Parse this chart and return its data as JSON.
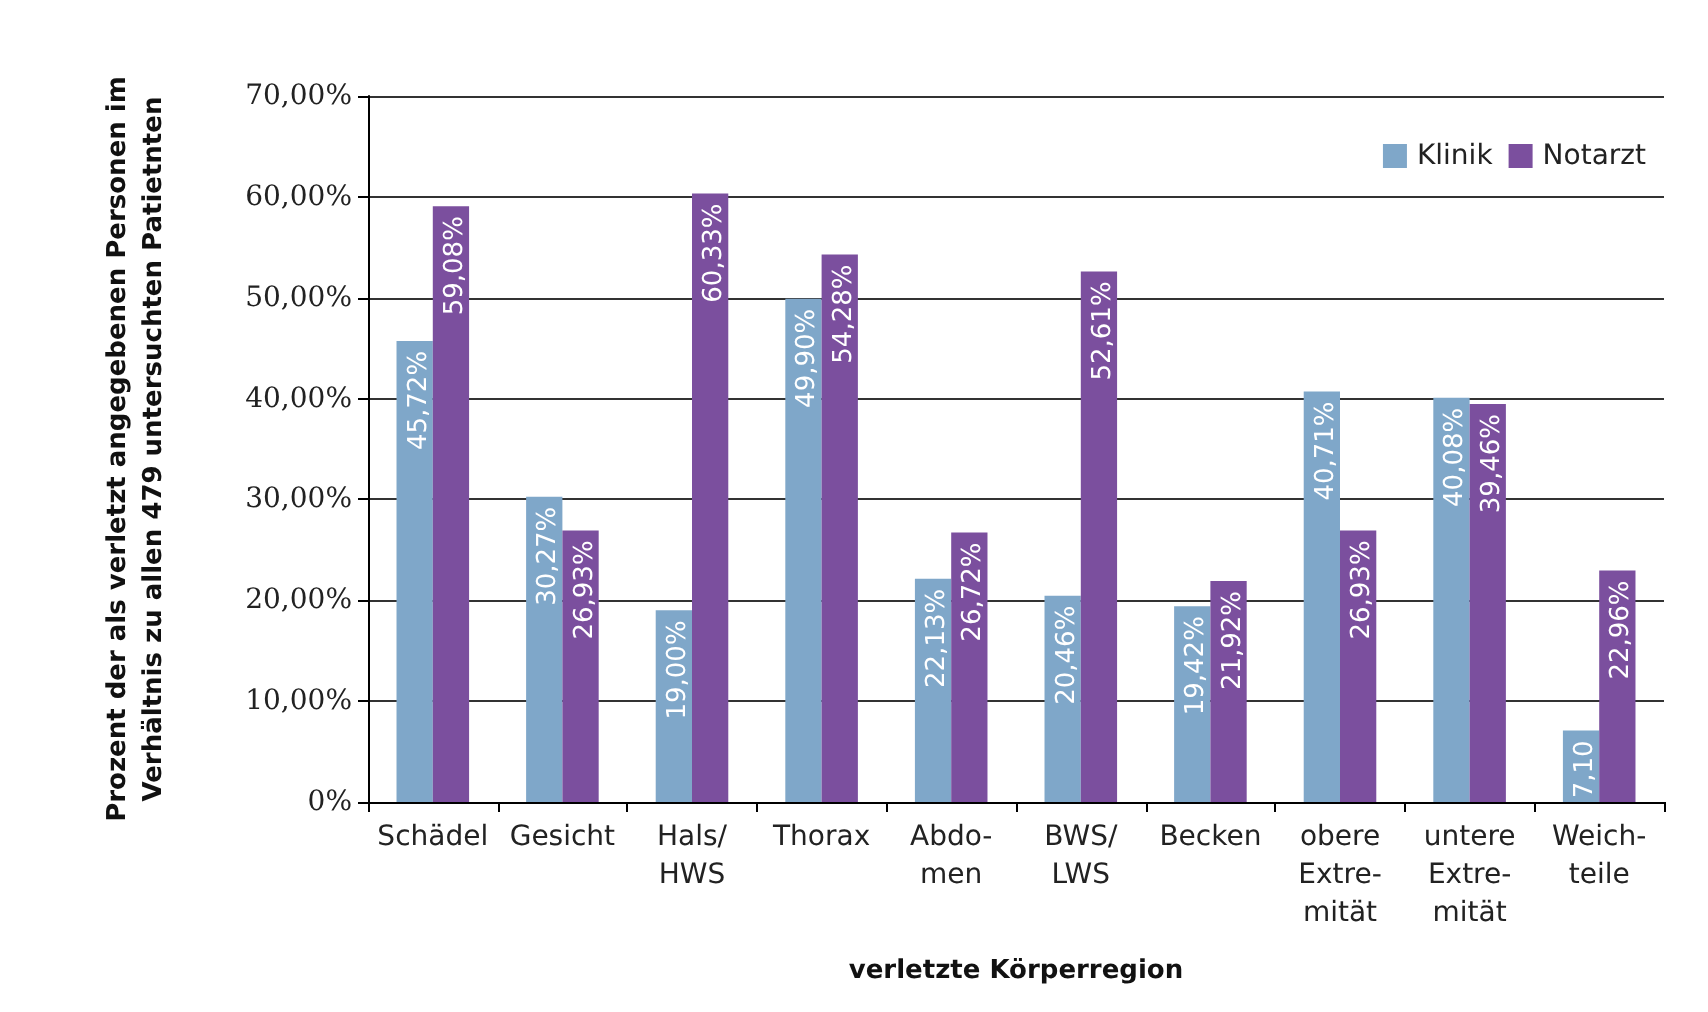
{
  "chart_data": {
    "type": "bar",
    "xlabel": "verletzte Körperregion",
    "ylabel": "Prozent der als verletzt angegebenen Personen im\nVerhältnis zu allen 479 untersuchten Patietnten",
    "categories": [
      "Schädel",
      "Gesicht",
      "Hals/\nHWS",
      "Thorax",
      "Abdo-\nmen",
      "BWS/\nLWS",
      "Becken",
      "obere\nExtre-\nmität",
      "untere\nExtre-\nmität",
      "Weich-\nteile"
    ],
    "series": [
      {
        "name": "Klinik",
        "color": "#7fa7c9",
        "values": [
          45.72,
          30.27,
          19.0,
          49.9,
          22.13,
          20.46,
          19.42,
          40.71,
          40.08,
          7.1
        ],
        "value_labels": [
          "45,72%",
          "30,27%",
          "19,00%",
          "49,90%",
          "22,13%",
          "20,46%",
          "19,42%",
          "40,71%",
          "40,08%",
          "7,10"
        ]
      },
      {
        "name": "Notarzt",
        "color": "#7b4f9e",
        "values": [
          59.08,
          26.93,
          60.33,
          54.28,
          26.72,
          52.61,
          21.92,
          26.93,
          39.46,
          22.96
        ],
        "value_labels": [
          "59,08%",
          "26,93%",
          "60,33%",
          "54,28%",
          "26,72%",
          "52,61%",
          "21,92%",
          "26,93%",
          "39,46%",
          "22,96%"
        ]
      }
    ],
    "ylim": [
      0,
      70
    ],
    "yticks": [
      {
        "value": 0,
        "label": "0%"
      },
      {
        "value": 10,
        "label": "10,00%"
      },
      {
        "value": 20,
        "label": "20,00%"
      },
      {
        "value": 30,
        "label": "30,00%"
      },
      {
        "value": 40,
        "label": "40,00%"
      },
      {
        "value": 50,
        "label": "50,00%"
      },
      {
        "value": 60,
        "label": "60,00%"
      },
      {
        "value": 70,
        "label": "70,00%"
      }
    ],
    "grid": "y",
    "legend": "top right"
  }
}
